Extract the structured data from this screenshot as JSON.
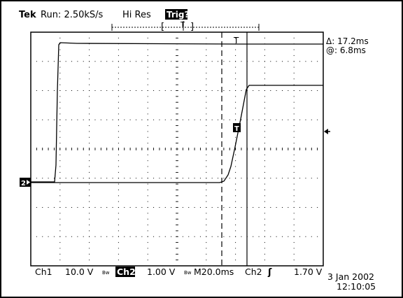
{
  "header": {
    "brand": "Tek",
    "run_status": "Run: 2.50kS/s",
    "acq_mode": "Hi Res",
    "trigger_status": "Trig?"
  },
  "cursor_readout": {
    "delta": "Δ: 17.2ms",
    "at": "@: 6.8ms"
  },
  "markers": {
    "ch2_ground": "2",
    "trigger_on_waveform": "T",
    "trigger_top": "T"
  },
  "footer": {
    "ch1_label": "Ch1",
    "ch1_scale": "10.0 V",
    "bw_symbol": "Bw",
    "ch2_label": "Ch2",
    "ch2_scale": "1.00 V",
    "timebase": "M20.0ms",
    "trig_source": "Ch2",
    "trig_slope": "ʃ",
    "trig_level": "1.70 V",
    "date": "3 Jan 2002",
    "time": "12:10:05"
  },
  "colors": {
    "background": "#ffffff",
    "trace": "#000000",
    "grid": "#000000"
  }
}
